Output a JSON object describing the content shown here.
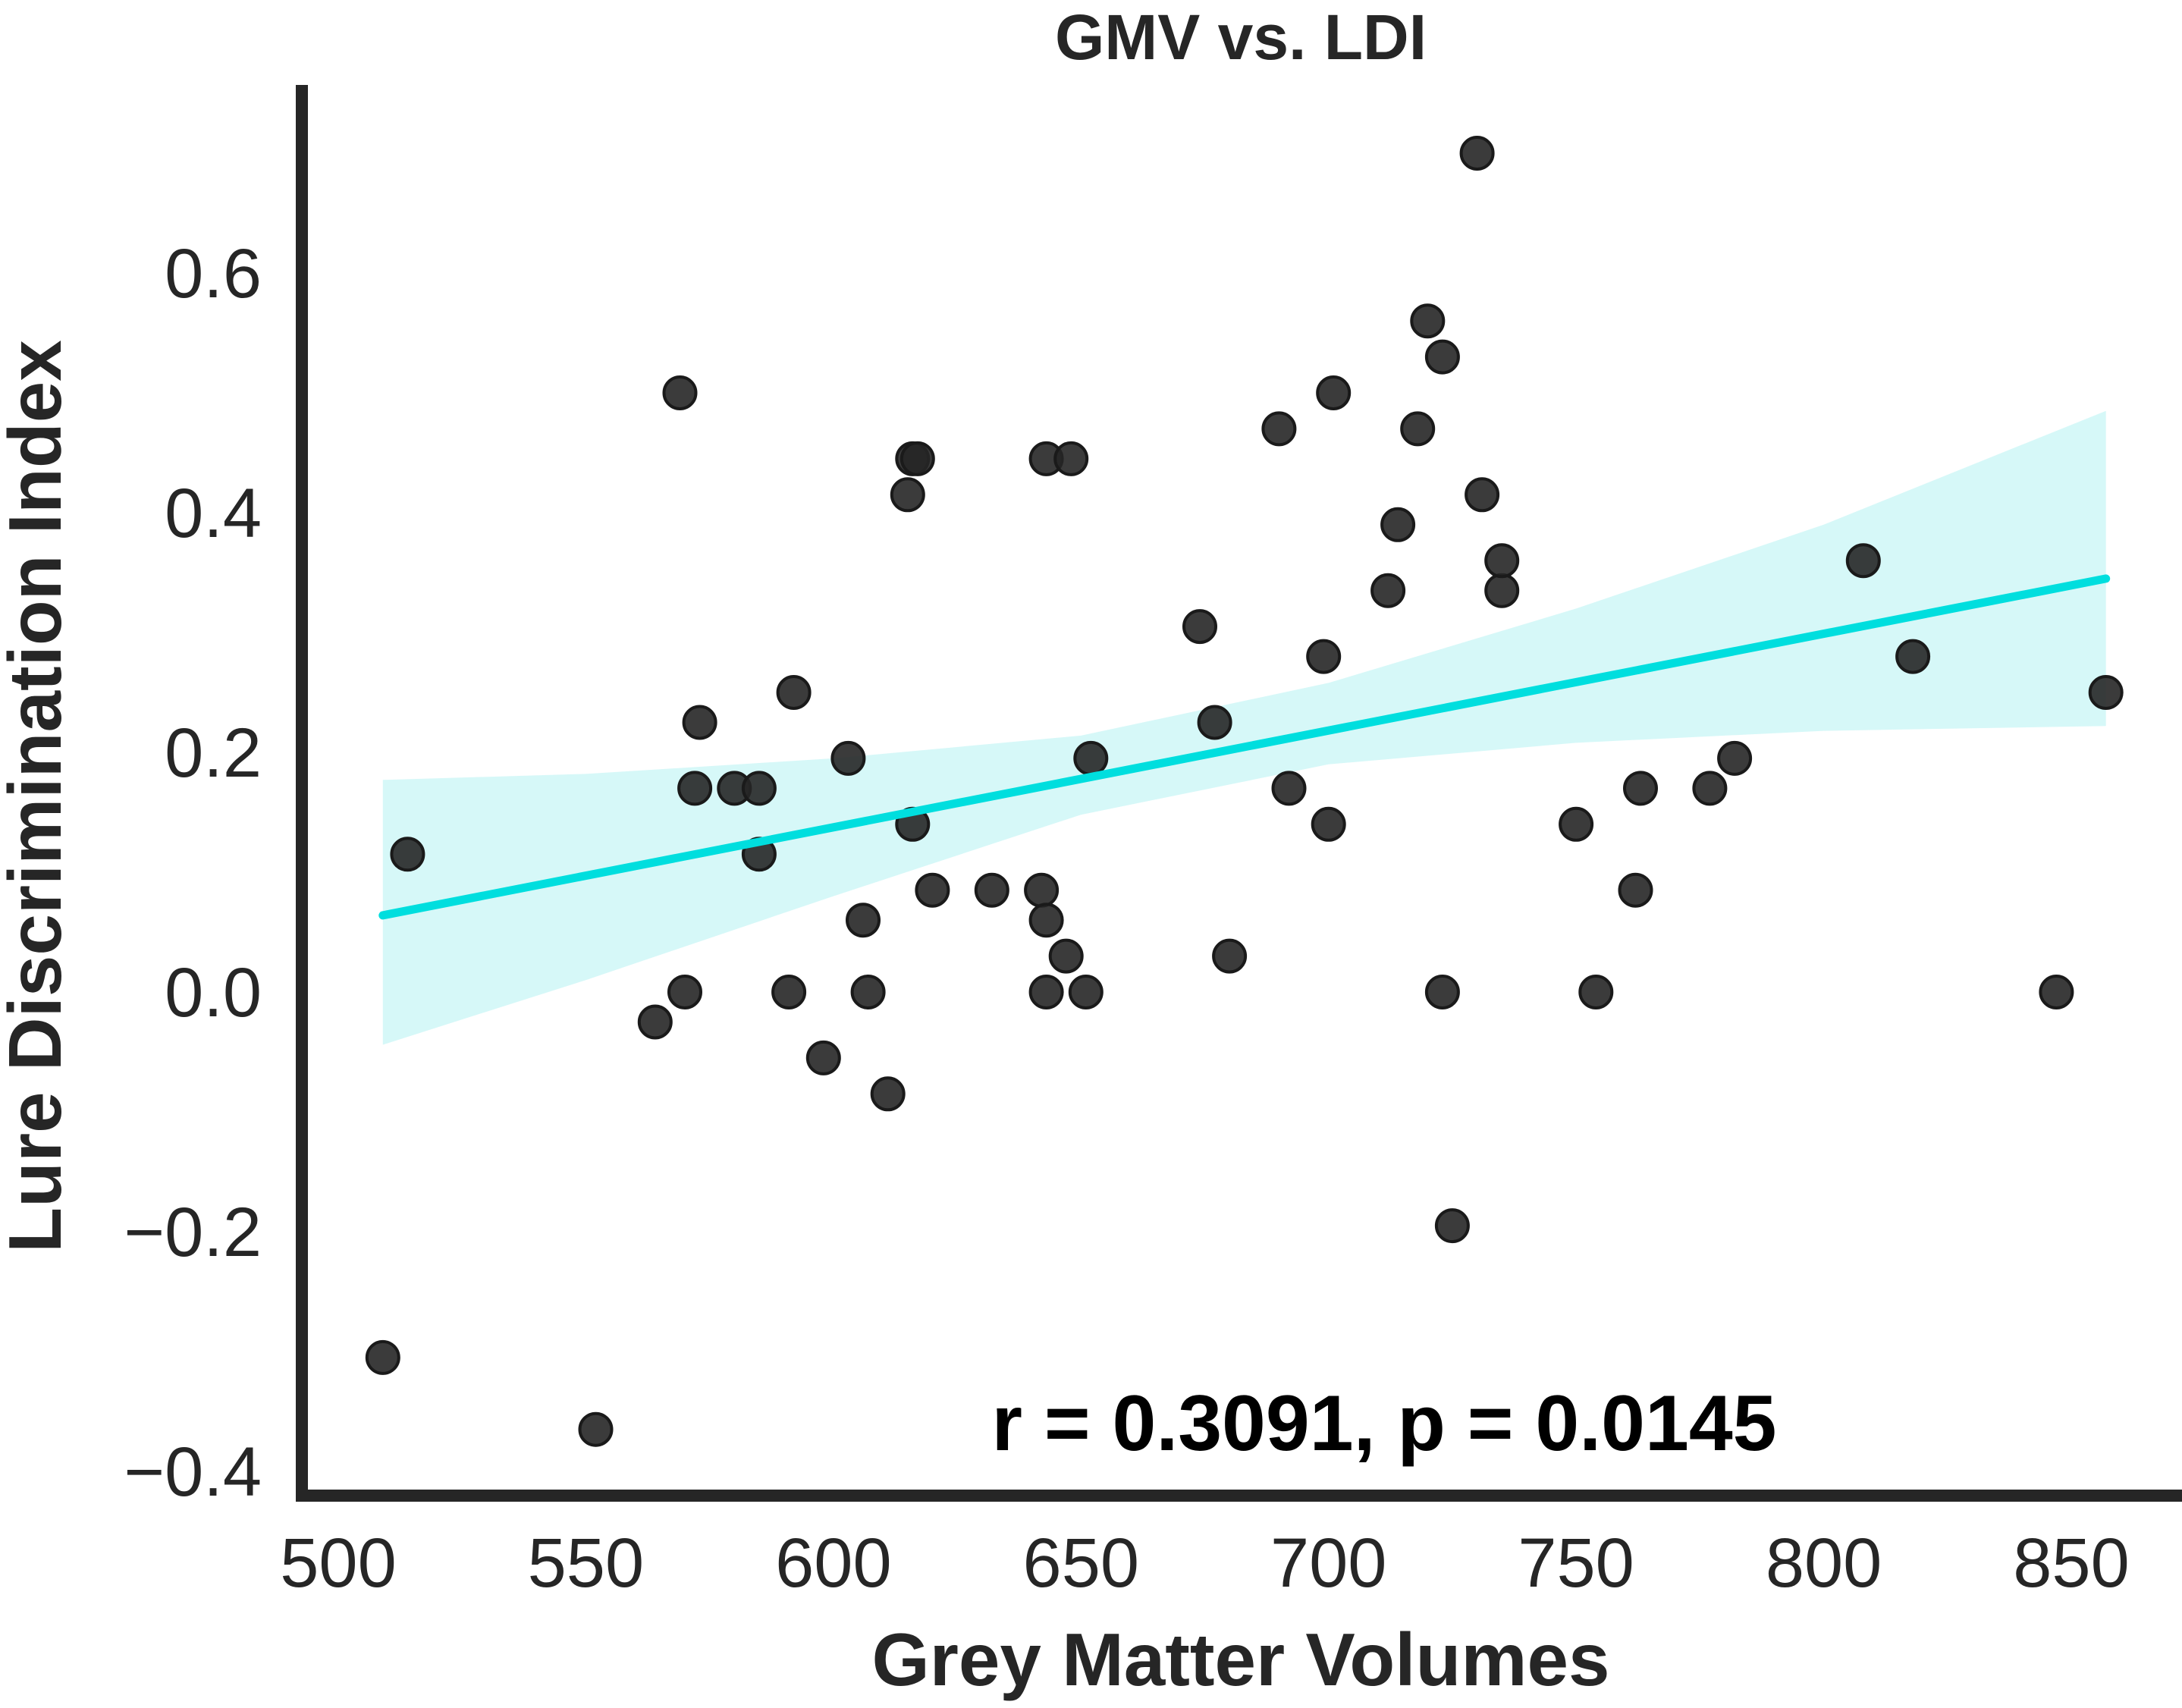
{
  "chart_data": {
    "type": "scatter",
    "title": "GMV vs. LDI",
    "xlabel": "Grey Matter Volumes",
    "ylabel": "Lure Discrimination Index",
    "xlim": [
      500,
      860
    ],
    "ylim": [
      -0.42,
      0.74
    ],
    "x_ticks": [
      500,
      550,
      600,
      650,
      700,
      750,
      800,
      850
    ],
    "x_tick_labels": [
      "500",
      "550",
      "600",
      "650",
      "700",
      "750",
      "800",
      "850"
    ],
    "y_ticks": [
      -0.4,
      -0.2,
      0.0,
      0.2,
      0.4,
      0.6
    ],
    "y_tick_labels": [
      "−0.4",
      "−0.2",
      "0.0",
      "0.2",
      "0.4",
      "0.6"
    ],
    "grid": false,
    "annotation": "r = 0.3091, p = 0.0145",
    "colors": {
      "points": "#262626",
      "regression_line": "#00dede",
      "confidence_band": "#c8f5f5",
      "axes": "#262626"
    },
    "regression": {
      "x": [
        509,
        857
      ],
      "y": [
        0.064,
        0.345
      ]
    },
    "confidence_band": {
      "x": [
        509,
        550,
        600,
        650,
        700,
        750,
        800,
        857
      ],
      "lower": [
        -0.044,
        0.01,
        0.08,
        0.148,
        0.19,
        0.208,
        0.218,
        0.222
      ],
      "upper": [
        0.177,
        0.182,
        0.195,
        0.214,
        0.258,
        0.32,
        0.39,
        0.485
      ]
    },
    "points": [
      {
        "x": 509,
        "y": -0.305
      },
      {
        "x": 514,
        "y": 0.115
      },
      {
        "x": 552,
        "y": -0.365
      },
      {
        "x": 564,
        "y": -0.025
      },
      {
        "x": 569,
        "y": 0.5
      },
      {
        "x": 570,
        "y": 0.0
      },
      {
        "x": 572,
        "y": 0.17
      },
      {
        "x": 573,
        "y": 0.225
      },
      {
        "x": 580,
        "y": 0.17
      },
      {
        "x": 585,
        "y": 0.17
      },
      {
        "x": 585,
        "y": 0.115
      },
      {
        "x": 591,
        "y": 0.0
      },
      {
        "x": 592,
        "y": 0.25
      },
      {
        "x": 598,
        "y": -0.055
      },
      {
        "x": 603,
        "y": 0.195
      },
      {
        "x": 606,
        "y": 0.06
      },
      {
        "x": 607,
        "y": 0.0
      },
      {
        "x": 611,
        "y": -0.085
      },
      {
        "x": 615,
        "y": 0.415
      },
      {
        "x": 616,
        "y": 0.445
      },
      {
        "x": 617,
        "y": 0.445
      },
      {
        "x": 616,
        "y": 0.14
      },
      {
        "x": 620,
        "y": 0.085
      },
      {
        "x": 632,
        "y": 0.085
      },
      {
        "x": 643,
        "y": 0.445
      },
      {
        "x": 642,
        "y": 0.085
      },
      {
        "x": 643,
        "y": 0.06
      },
      {
        "x": 643,
        "y": 0.0
      },
      {
        "x": 648,
        "y": 0.445
      },
      {
        "x": 647,
        "y": 0.03
      },
      {
        "x": 651,
        "y": 0.0
      },
      {
        "x": 652,
        "y": 0.195
      },
      {
        "x": 674,
        "y": 0.305
      },
      {
        "x": 677,
        "y": 0.225
      },
      {
        "x": 680,
        "y": 0.03
      },
      {
        "x": 690,
        "y": 0.47
      },
      {
        "x": 692,
        "y": 0.17
      },
      {
        "x": 699,
        "y": 0.28
      },
      {
        "x": 700,
        "y": 0.14
      },
      {
        "x": 701,
        "y": 0.5
      },
      {
        "x": 712,
        "y": 0.335
      },
      {
        "x": 714,
        "y": 0.39
      },
      {
        "x": 718,
        "y": 0.47
      },
      {
        "x": 720,
        "y": 0.56
      },
      {
        "x": 723,
        "y": 0.53
      },
      {
        "x": 723,
        "y": 0.0
      },
      {
        "x": 725,
        "y": -0.195
      },
      {
        "x": 730,
        "y": 0.7
      },
      {
        "x": 731,
        "y": 0.415
      },
      {
        "x": 735,
        "y": 0.335
      },
      {
        "x": 735,
        "y": 0.36
      },
      {
        "x": 750,
        "y": 0.14
      },
      {
        "x": 754,
        "y": 0.0
      },
      {
        "x": 762,
        "y": 0.085
      },
      {
        "x": 763,
        "y": 0.17
      },
      {
        "x": 777,
        "y": 0.17
      },
      {
        "x": 782,
        "y": 0.195
      },
      {
        "x": 808,
        "y": 0.36
      },
      {
        "x": 818,
        "y": 0.28
      },
      {
        "x": 847,
        "y": 0.0
      },
      {
        "x": 857,
        "y": 0.25
      }
    ]
  }
}
